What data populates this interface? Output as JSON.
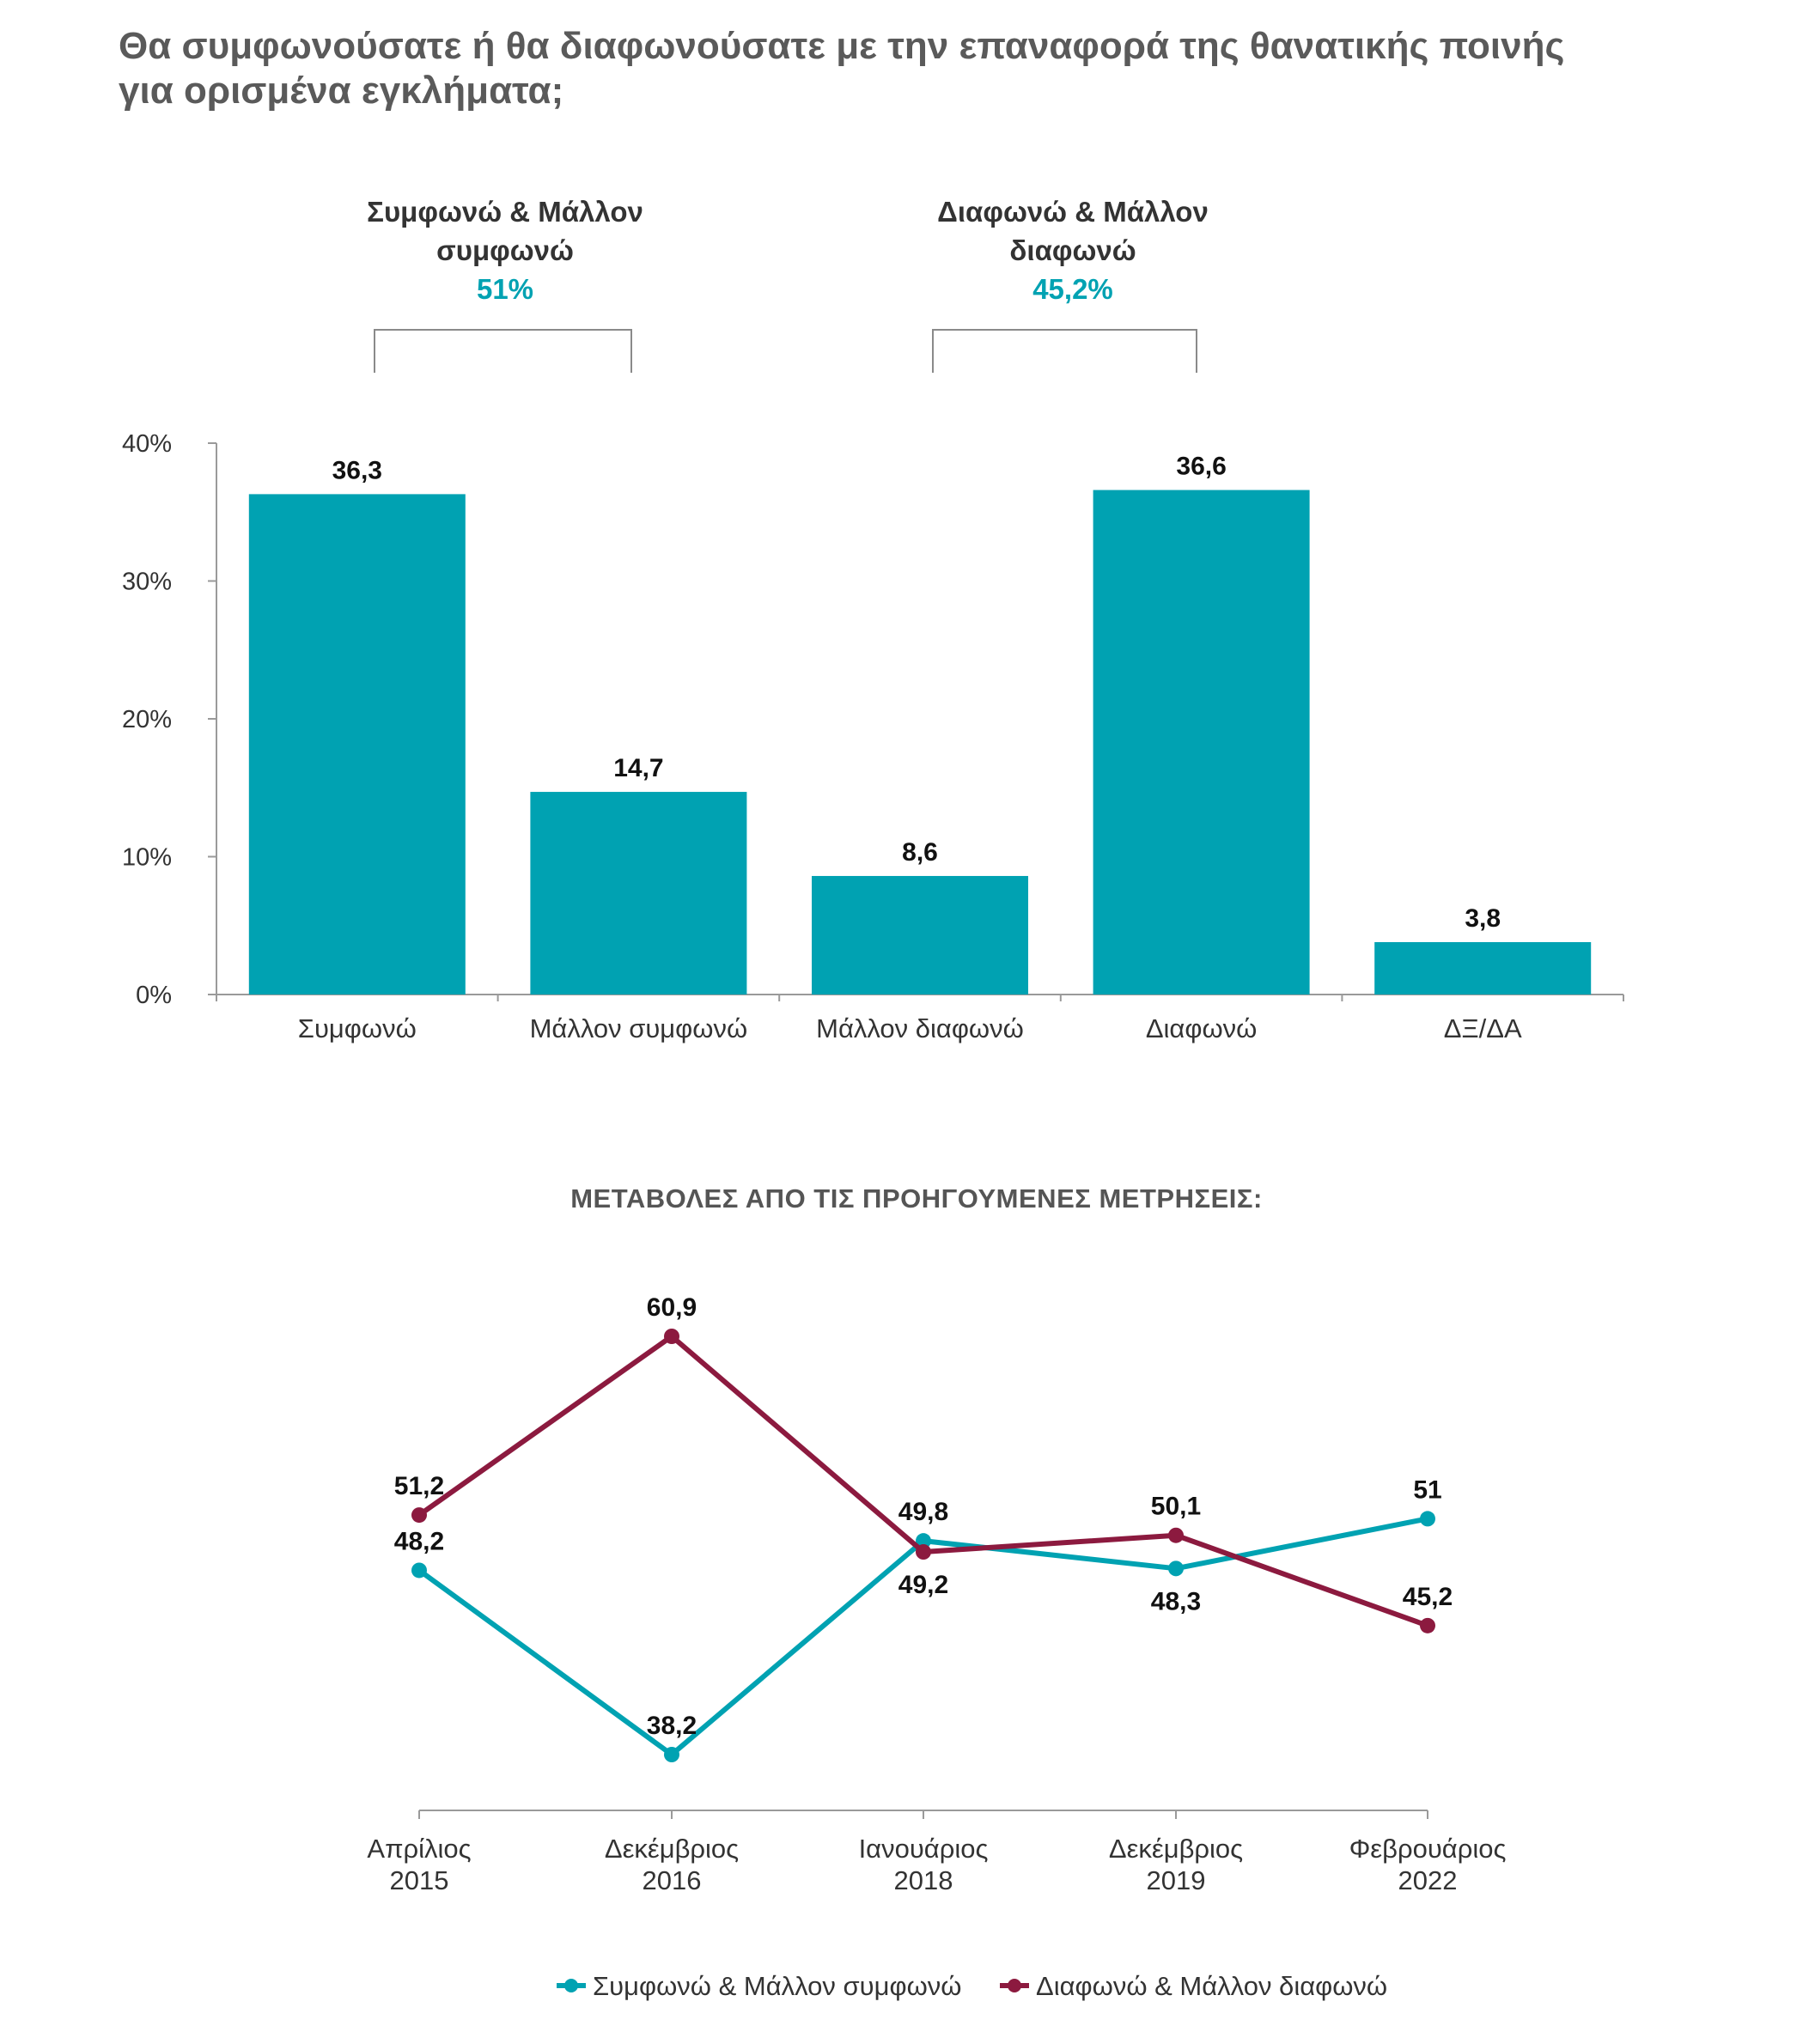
{
  "title": {
    "line1": "Θα συμφωνούσατε ή θα διαφωνούσατε με την επαναφορά της θανατικής ποινής",
    "line2": "για ορισμένα εγκλήματα;"
  },
  "groups": [
    {
      "label_line1": "Συμφωνώ & Μάλλον",
      "label_line2": "συμφωνώ",
      "value": "51%"
    },
    {
      "label_line1": "Διαφωνώ & Μάλλον",
      "label_line2": "διαφωνώ",
      "value": "45,2%"
    }
  ],
  "colors": {
    "teal": "#00a2b2",
    "burgundy": "#8c1a3f",
    "axis": "#9a9a9a"
  },
  "chart_data": [
    {
      "type": "bar",
      "categories": [
        "Συμφωνώ",
        "Μάλλον συμφωνώ",
        "Μάλλον διαφωνώ",
        "Διαφωνώ",
        "ΔΞ/ΔΑ"
      ],
      "values": [
        36.3,
        14.7,
        8.6,
        36.6,
        3.8
      ],
      "value_labels": [
        "36,3",
        "14,7",
        "8,6",
        "36,6",
        "3,8"
      ],
      "ylim": [
        0,
        40
      ],
      "yticks": [
        0,
        10,
        20,
        30,
        40
      ],
      "ytick_labels": [
        "0%",
        "10%",
        "20%",
        "30%",
        "40%"
      ],
      "color": "#00a2b2"
    },
    {
      "type": "line",
      "title": "ΜΕΤΑΒΟΛΕΣ ΑΠΟ ΤΙΣ ΠΡΟΗΓΟΥΜΕΝΕΣ ΜΕΤΡΗΣΕΙΣ:",
      "categories": [
        {
          "line1": "Απρίλιος",
          "line2": "2015"
        },
        {
          "line1": "Δεκέμβριος",
          "line2": "2016"
        },
        {
          "line1": "Ιανουάριος",
          "line2": "2018"
        },
        {
          "line1": "Δεκέμβριος",
          "line2": "2019"
        },
        {
          "line1": "Φεβρουάριος",
          "line2": "2022"
        }
      ],
      "series": [
        {
          "name": "Συμφωνώ & Μάλλον συμφωνώ",
          "color": "#00a2b2",
          "values": [
            48.2,
            38.2,
            49.8,
            48.3,
            51
          ],
          "labels": [
            "48,2",
            "38,2",
            "49,8",
            "48,3",
            "51"
          ]
        },
        {
          "name": "Διαφωνώ & Μάλλον διαφωνώ",
          "color": "#8c1a3f",
          "values": [
            51.2,
            60.9,
            49.2,
            50.1,
            45.2
          ],
          "labels": [
            "51,2",
            "60,9",
            "49,2",
            "50,1",
            "45,2"
          ]
        }
      ],
      "legend": "bottom-center"
    }
  ]
}
